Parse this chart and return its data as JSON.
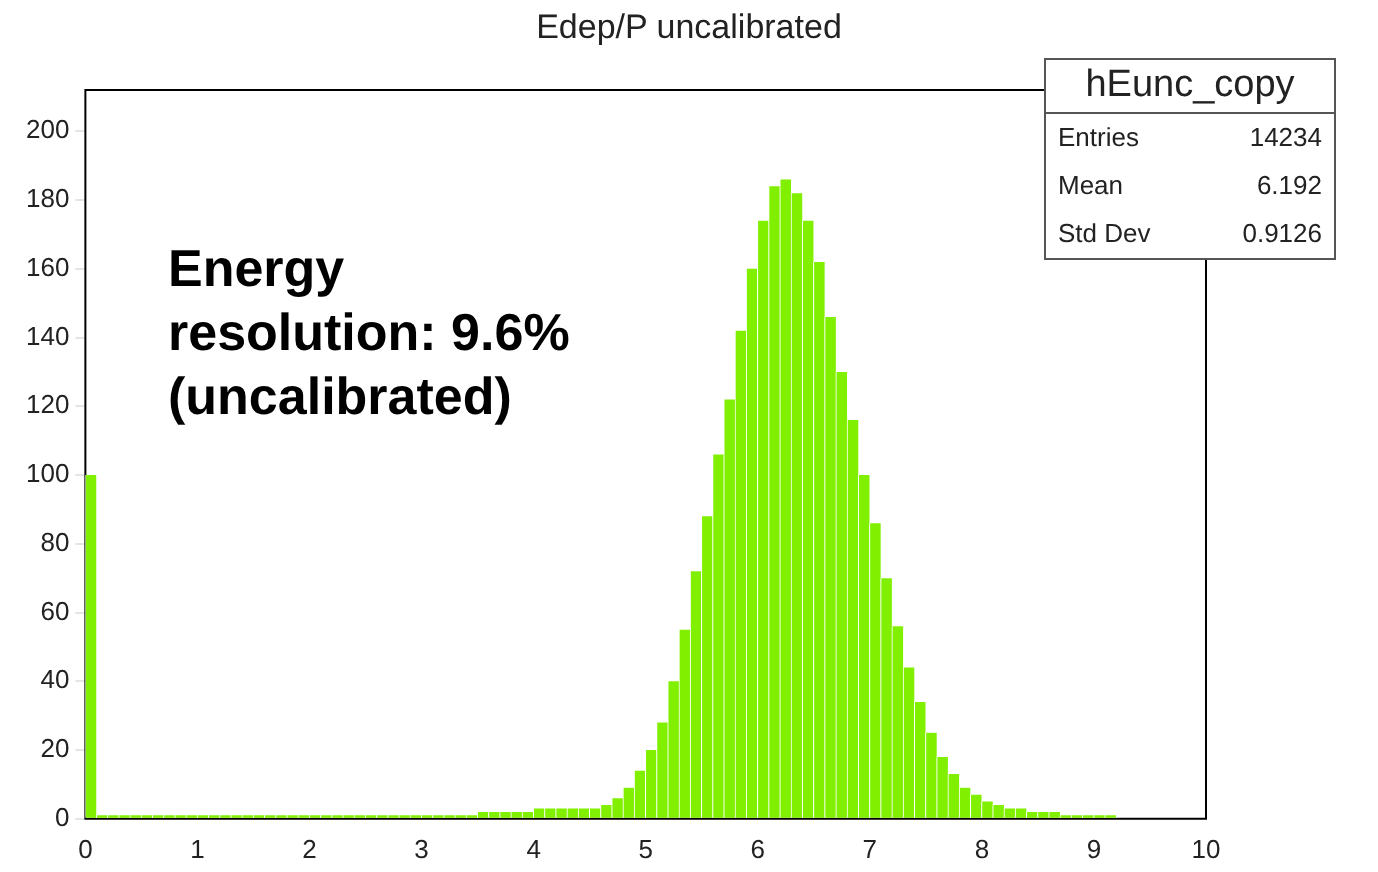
{
  "chart_data": {
    "type": "histogram",
    "title": "Edep/P uncalibrated",
    "bins": [
      0,
      0.1,
      0.2,
      0.3,
      0.4,
      0.5,
      0.6,
      0.7,
      0.8,
      0.9,
      1,
      1.1,
      1.2,
      1.3,
      1.4,
      1.5,
      1.6,
      1.7,
      1.8,
      1.9,
      2,
      2.1,
      2.2,
      2.3,
      2.4,
      2.5,
      2.6,
      2.7,
      2.8,
      2.9,
      3,
      3.1,
      3.2,
      3.3,
      3.4,
      3.5,
      3.6,
      3.7,
      3.8,
      3.9,
      4,
      4.1,
      4.2,
      4.3,
      4.4,
      4.5,
      4.6,
      4.7,
      4.8,
      4.9,
      5,
      5.1,
      5.2,
      5.3,
      5.4,
      5.5,
      5.6,
      5.7,
      5.8,
      5.9,
      6,
      6.1,
      6.2,
      6.3,
      6.4,
      6.5,
      6.6,
      6.7,
      6.8,
      6.9,
      7,
      7.1,
      7.2,
      7.3,
      7.4,
      7.5,
      7.6,
      7.7,
      7.8,
      7.9,
      8,
      8.1,
      8.2,
      8.3,
      8.4,
      8.5,
      8.6,
      8.7,
      8.8,
      8.9,
      9,
      9.1,
      9.2,
      9.3,
      9.4,
      9.5,
      9.6,
      9.7,
      9.8,
      9.9,
      10
    ],
    "values": [
      100,
      1,
      1,
      1,
      1,
      1,
      1,
      1,
      1,
      1,
      1,
      1,
      1,
      1,
      1,
      1,
      1,
      1,
      1,
      1,
      1,
      1,
      1,
      1,
      1,
      1,
      1,
      1,
      1,
      1,
      1,
      1,
      1,
      1,
      1,
      2,
      2,
      2,
      2,
      2,
      3,
      3,
      3,
      3,
      3,
      3,
      4,
      6,
      9,
      14,
      20,
      28,
      40,
      55,
      72,
      88,
      106,
      122,
      142,
      160,
      174,
      184,
      186,
      182,
      174,
      162,
      146,
      130,
      116,
      100,
      86,
      70,
      56,
      44,
      34,
      25,
      18,
      13,
      9,
      7,
      5,
      4,
      3,
      3,
      2,
      2,
      2,
      1,
      1,
      1,
      1,
      1,
      0,
      0,
      0,
      0,
      0,
      0,
      0,
      0
    ],
    "color": "#80f000",
    "xlim": [
      0,
      10
    ],
    "xticks": [
      0,
      1,
      2,
      3,
      4,
      5,
      6,
      7,
      8,
      9,
      10
    ],
    "ylim": [
      0,
      212
    ],
    "yticks": [
      0,
      20,
      40,
      60,
      80,
      100,
      120,
      140,
      160,
      180,
      200
    ],
    "grid": false,
    "legend": false,
    "annotations": [
      "Energy\nresolution: 9.6%\n(uncalibrated)",
      "hEunc_copy",
      "Entries 14234",
      "Mean 6.192",
      "Std Dev 0.9126"
    ]
  }
}
